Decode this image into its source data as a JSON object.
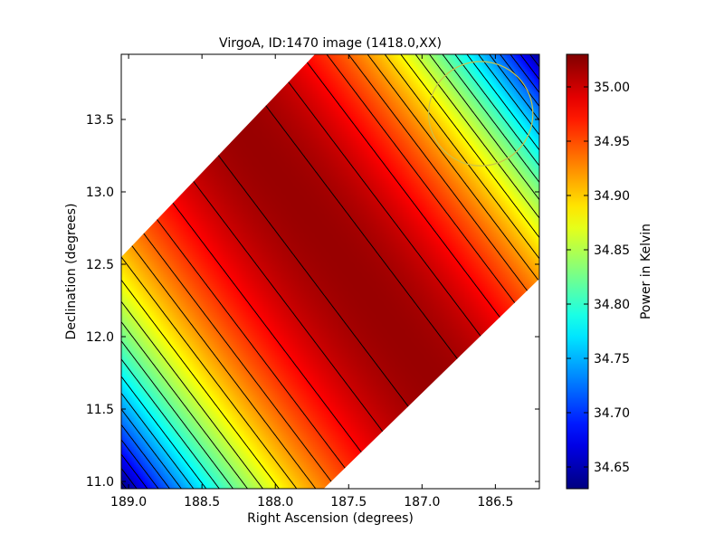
{
  "chart_data": {
    "type": "heatmap",
    "title": "VirgoA, ID:1470 image (1418.0,XX)",
    "xlabel": "Right Ascension (degrees)",
    "ylabel": "Declination (degrees)",
    "colorbar_label": "Power in Kelvin",
    "colormap": "jet",
    "xlim": [
      189.05,
      186.2
    ],
    "ylim": [
      10.95,
      13.95
    ],
    "x_ticks": [
      189.0,
      188.5,
      188.0,
      187.5,
      187.0,
      186.5
    ],
    "x_tick_labels": [
      "189.0",
      "188.5",
      "188.0",
      "187.5",
      "187.0",
      "186.5"
    ],
    "y_ticks": [
      11.0,
      11.5,
      12.0,
      12.5,
      13.0,
      13.5
    ],
    "y_tick_labels": [
      "11.0",
      "11.5",
      "12.0",
      "12.5",
      "13.0",
      "13.5"
    ],
    "clim": [
      34.63,
      35.03
    ],
    "colorbar_ticks": [
      34.65,
      34.7,
      34.75,
      34.8,
      34.85,
      34.9,
      34.95,
      35.0
    ],
    "colorbar_tick_labels": [
      "34.65",
      "34.70",
      "34.75",
      "34.80",
      "34.85",
      "34.90",
      "34.95",
      "35.00"
    ],
    "data_region_polygon_radec": [
      [
        189.05,
        12.55
      ],
      [
        187.73,
        13.95
      ],
      [
        186.2,
        13.95
      ],
      [
        186.2,
        12.4
      ],
      [
        187.67,
        10.95
      ],
      [
        189.05,
        10.95
      ]
    ],
    "field_model": {
      "description_of_values": "Smooth ridge of maximum power (~35.02 K) running from upper-left to lower-right, falling off toward lower-left and upper-right corners",
      "peak_value": 35.02,
      "ridge_points_radec": [
        [
          188.12,
          13.3
        ],
        [
          187.35,
          12.4
        ],
        [
          187.0,
          11.8
        ]
      ],
      "lower_left_corner_value": 34.63,
      "upper_right_corner_value": 34.64
    },
    "contour_levels": [
      34.64,
      34.66,
      34.68,
      34.7,
      34.72,
      34.74,
      34.76,
      34.78,
      34.8,
      34.82,
      34.84,
      34.86,
      34.88,
      34.9,
      34.92,
      34.94,
      34.96,
      34.98,
      35.0,
      35.015
    ],
    "contour_color": "#000000",
    "beam_circle": {
      "center_radec": [
        186.6,
        13.54
      ],
      "radius_deg": 0.36,
      "color": "#c8c24a"
    }
  }
}
